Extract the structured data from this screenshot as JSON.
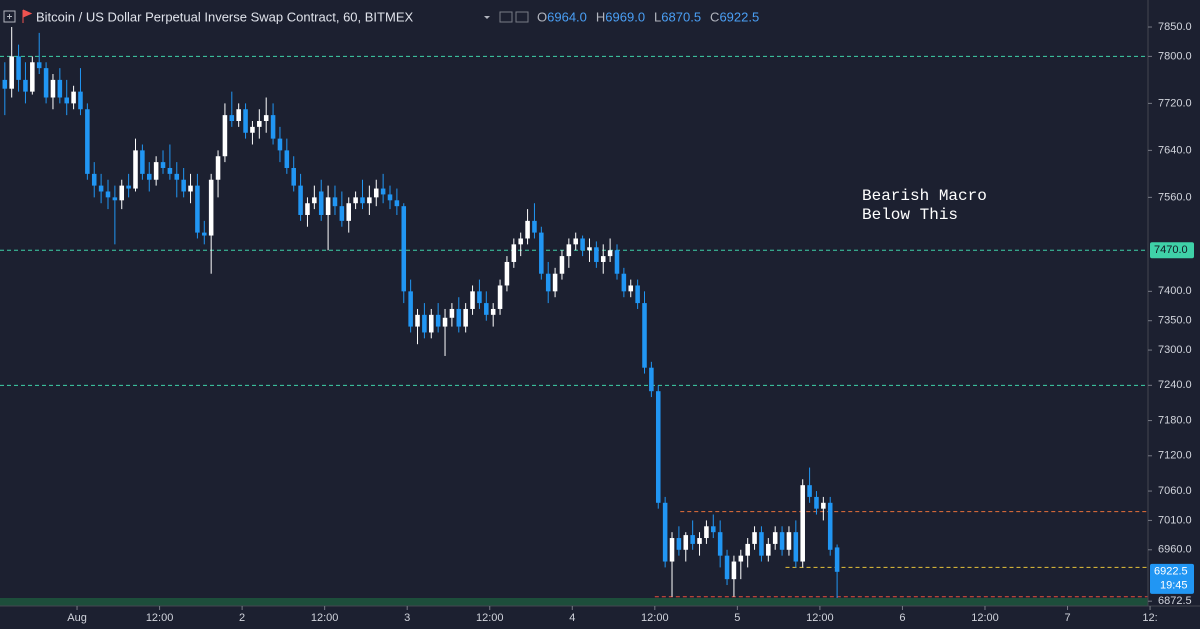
{
  "chart_data": {
    "type": "candlestick",
    "title": "Bitcoin / US Dollar Perpetual Inverse Swap Contract, 60, BITMEX",
    "legend": [
      {
        "key": "O",
        "value": {
          "value": 6964,
          "label": "6964.0"
        }
      },
      {
        "key": "H",
        "value": {
          "value": 6969,
          "label": "6969.0"
        }
      },
      {
        "key": "L",
        "value": {
          "value": 6870.5,
          "label": "6870.5"
        }
      },
      {
        "key": "C",
        "value": {
          "value": 6922.5,
          "label": "6922.5"
        }
      }
    ],
    "up_color": "#ffffff",
    "down_color": "#2196f3",
    "x": [
      -11,
      -10,
      -9,
      -8,
      -7,
      -6,
      -5,
      -4,
      -3,
      -2,
      -1,
      0,
      1,
      2,
      3,
      4,
      5,
      6,
      7,
      8,
      9,
      10,
      11,
      12,
      13,
      14,
      15,
      16,
      17,
      18,
      19,
      20,
      21,
      22,
      23,
      24,
      25,
      26,
      27,
      28,
      29,
      30,
      31,
      32,
      33,
      34,
      35,
      36,
      37,
      38,
      39,
      40,
      41,
      42,
      43,
      44,
      45,
      46,
      47,
      48,
      49,
      50,
      51,
      52,
      53,
      54,
      55,
      56,
      57,
      58,
      59,
      60,
      61,
      62,
      63,
      64,
      65,
      66,
      67,
      68,
      69,
      70,
      71,
      72,
      73,
      74,
      75,
      76,
      77,
      78,
      79,
      80,
      81,
      82,
      83,
      84,
      85,
      86,
      87,
      88,
      89,
      90,
      91,
      92,
      93,
      94,
      95,
      96,
      97,
      98,
      99,
      100,
      101,
      102,
      103,
      104,
      105,
      106,
      107,
      108,
      109,
      110
    ],
    "ohlc": [
      [
        7760,
        7790,
        7700,
        7745
      ],
      [
        7745,
        7850,
        7730,
        7800
      ],
      [
        7800,
        7820,
        7740,
        7760
      ],
      [
        7760,
        7790,
        7720,
        7740
      ],
      [
        7740,
        7800,
        7735,
        7790
      ],
      [
        7790,
        7840,
        7770,
        7780
      ],
      [
        7780,
        7790,
        7720,
        7730
      ],
      [
        7730,
        7770,
        7710,
        7760
      ],
      [
        7760,
        7780,
        7720,
        7730
      ],
      [
        7730,
        7760,
        7700,
        7720
      ],
      [
        7720,
        7750,
        7710,
        7740
      ],
      [
        7740,
        7780,
        7700,
        7710
      ],
      [
        7710,
        7720,
        7590,
        7600
      ],
      [
        7600,
        7620,
        7560,
        7580
      ],
      [
        7580,
        7600,
        7550,
        7570
      ],
      [
        7570,
        7590,
        7540,
        7560
      ],
      [
        7560,
        7580,
        7480,
        7555
      ],
      [
        7555,
        7590,
        7540,
        7580
      ],
      [
        7580,
        7600,
        7560,
        7575
      ],
      [
        7575,
        7660,
        7570,
        7640
      ],
      [
        7640,
        7650,
        7590,
        7600
      ],
      [
        7600,
        7620,
        7570,
        7590
      ],
      [
        7590,
        7630,
        7580,
        7620
      ],
      [
        7620,
        7640,
        7600,
        7610
      ],
      [
        7610,
        7650,
        7590,
        7600
      ],
      [
        7600,
        7620,
        7560,
        7590
      ],
      [
        7590,
        7610,
        7560,
        7570
      ],
      [
        7570,
        7600,
        7550,
        7580
      ],
      [
        7580,
        7600,
        7490,
        7500
      ],
      [
        7500,
        7520,
        7480,
        7495
      ],
      [
        7495,
        7600,
        7430,
        7590
      ],
      [
        7590,
        7640,
        7560,
        7630
      ],
      [
        7630,
        7720,
        7620,
        7700
      ],
      [
        7700,
        7740,
        7680,
        7690
      ],
      [
        7690,
        7720,
        7680,
        7710
      ],
      [
        7710,
        7720,
        7660,
        7670
      ],
      [
        7670,
        7690,
        7650,
        7680
      ],
      [
        7680,
        7710,
        7660,
        7690
      ],
      [
        7690,
        7730,
        7670,
        7700
      ],
      [
        7700,
        7720,
        7650,
        7660
      ],
      [
        7660,
        7680,
        7620,
        7640
      ],
      [
        7640,
        7660,
        7600,
        7610
      ],
      [
        7610,
        7630,
        7570,
        7580
      ],
      [
        7580,
        7600,
        7520,
        7530
      ],
      [
        7530,
        7560,
        7510,
        7550
      ],
      [
        7550,
        7580,
        7540,
        7560
      ],
      [
        7570,
        7590,
        7520,
        7530
      ],
      [
        7530,
        7580,
        7470,
        7560
      ],
      [
        7560,
        7580,
        7530,
        7545
      ],
      [
        7545,
        7570,
        7510,
        7520
      ],
      [
        7520,
        7560,
        7500,
        7550
      ],
      [
        7550,
        7570,
        7540,
        7560
      ],
      [
        7560,
        7590,
        7540,
        7550
      ],
      [
        7550,
        7580,
        7530,
        7560
      ],
      [
        7560,
        7590,
        7545,
        7575
      ],
      [
        7575,
        7600,
        7550,
        7565
      ],
      [
        7565,
        7580,
        7540,
        7555
      ],
      [
        7555,
        7575,
        7530,
        7545
      ],
      [
        7545,
        7550,
        7380,
        7400
      ],
      [
        7400,
        7420,
        7330,
        7340
      ],
      [
        7340,
        7370,
        7310,
        7360
      ],
      [
        7360,
        7380,
        7320,
        7330
      ],
      [
        7330,
        7370,
        7320,
        7360
      ],
      [
        7360,
        7380,
        7330,
        7340
      ],
      [
        7340,
        7370,
        7290,
        7355
      ],
      [
        7355,
        7380,
        7340,
        7370
      ],
      [
        7370,
        7390,
        7330,
        7340
      ],
      [
        7340,
        7380,
        7330,
        7370
      ],
      [
        7370,
        7410,
        7360,
        7400
      ],
      [
        7400,
        7420,
        7370,
        7380
      ],
      [
        7380,
        7400,
        7350,
        7360
      ],
      [
        7360,
        7380,
        7340,
        7370
      ],
      [
        7370,
        7420,
        7360,
        7410
      ],
      [
        7410,
        7460,
        7400,
        7450
      ],
      [
        7450,
        7490,
        7440,
        7480
      ],
      [
        7480,
        7500,
        7460,
        7490
      ],
      [
        7490,
        7540,
        7480,
        7520
      ],
      [
        7520,
        7550,
        7490,
        7500
      ],
      [
        7500,
        7510,
        7420,
        7430
      ],
      [
        7430,
        7450,
        7380,
        7400
      ],
      [
        7400,
        7440,
        7390,
        7430
      ],
      [
        7430,
        7470,
        7420,
        7460
      ],
      [
        7460,
        7490,
        7440,
        7480
      ],
      [
        7480,
        7500,
        7470,
        7490
      ],
      [
        7490,
        7495,
        7460,
        7470
      ],
      [
        7470,
        7490,
        7450,
        7475
      ],
      [
        7475,
        7485,
        7440,
        7450
      ],
      [
        7450,
        7480,
        7430,
        7460
      ],
      [
        7460,
        7490,
        7450,
        7470
      ],
      [
        7470,
        7480,
        7420,
        7430
      ],
      [
        7430,
        7440,
        7390,
        7400
      ],
      [
        7400,
        7420,
        7390,
        7410
      ],
      [
        7410,
        7420,
        7370,
        7380
      ],
      [
        7380,
        7400,
        7260,
        7270
      ],
      [
        7270,
        7280,
        7220,
        7230
      ],
      [
        7230,
        7240,
        7030,
        7040
      ],
      [
        7040,
        7050,
        6930,
        6940
      ],
      [
        6940,
        6990,
        6880,
        6980
      ],
      [
        6980,
        7000,
        6950,
        6960
      ],
      [
        6960,
        6990,
        6940,
        6985
      ],
      [
        6985,
        7010,
        6960,
        6970
      ],
      [
        6970,
        6990,
        6950,
        6980
      ],
      [
        6980,
        7010,
        6970,
        7000
      ],
      [
        7000,
        7020,
        6980,
        6990
      ],
      [
        6990,
        7010,
        6930,
        6950
      ],
      [
        6950,
        6960,
        6900,
        6910
      ],
      [
        6910,
        6950,
        6880,
        6940
      ],
      [
        6940,
        6960,
        6910,
        6950
      ],
      [
        6950,
        6980,
        6930,
        6970
      ],
      [
        6970,
        7000,
        6960,
        6990
      ],
      [
        6990,
        7000,
        6940,
        6950
      ],
      [
        6950,
        6980,
        6940,
        6970
      ],
      [
        6970,
        7000,
        6960,
        6990
      ],
      [
        6990,
        7000,
        6950,
        6960
      ],
      [
        6960,
        7000,
        6950,
        6990
      ],
      [
        6990,
        7010,
        6930,
        6940
      ],
      [
        6940,
        7080,
        6930,
        7070
      ],
      [
        7070,
        7100,
        7040,
        7050
      ],
      [
        7050,
        7060,
        7020,
        7030
      ],
      [
        7030,
        7050,
        7010,
        7040
      ],
      [
        7040,
        7050,
        6950,
        6960
      ],
      [
        6964,
        6969,
        6870.5,
        6922.5
      ]
    ],
    "xlim": [
      -11.2,
      155.7
    ],
    "xticks": [
      {
        "value": 0,
        "label": "Aug"
      },
      {
        "value": 12,
        "label": "12:00"
      },
      {
        "value": 24,
        "label": "2"
      },
      {
        "value": 36,
        "label": "12:00"
      },
      {
        "value": 48,
        "label": "3"
      },
      {
        "value": 60,
        "label": "12:00"
      },
      {
        "value": 72,
        "label": "4"
      },
      {
        "value": 84,
        "label": "12:00"
      },
      {
        "value": 96,
        "label": "5"
      },
      {
        "value": 108,
        "label": "12:00"
      },
      {
        "value": 120,
        "label": "6"
      },
      {
        "value": 132,
        "label": "12:00"
      },
      {
        "value": 144,
        "label": "7"
      },
      {
        "value": 156,
        "label": "12:"
      }
    ],
    "ylim": [
      6866,
      7896
    ],
    "yticks": [
      {
        "value": 7850,
        "label": "7850.0"
      },
      {
        "value": 7800,
        "label": "7800.0"
      },
      {
        "value": 7720,
        "label": "7720.0"
      },
      {
        "value": 7640,
        "label": "7640.0"
      },
      {
        "value": 7560,
        "label": "7560.0"
      },
      {
        "value": 7400,
        "label": "7400.0"
      },
      {
        "value": 7350,
        "label": "7350.0"
      },
      {
        "value": 7300,
        "label": "7300.0"
      },
      {
        "value": 7240,
        "label": "7240.0"
      },
      {
        "value": 7180,
        "label": "7180.0"
      },
      {
        "value": 7120,
        "label": "7120.0"
      },
      {
        "value": 7060,
        "label": "7060.0"
      },
      {
        "value": 7010,
        "label": "7010.0"
      },
      {
        "value": 6960,
        "label": "6960.0"
      },
      {
        "value": 6872.5,
        "label": "6872.5"
      }
    ],
    "hlines": [
      {
        "value": 7800,
        "color": "#3fd1a8",
        "x_from": -11.2
      },
      {
        "value": {
          "value": 7470,
          "label": "7470.0"
        },
        "color": "#3fd1a8",
        "x_from": -11.2
      },
      {
        "value": 7240,
        "color": "#3fd1a8",
        "x_from": -11.2
      },
      {
        "value": 7025,
        "color": "#e8703a",
        "x_from": 87.7
      },
      {
        "value": 6930,
        "color": "#e8c33a",
        "x_from": 103
      },
      {
        "value": 6880,
        "color": "#e8503a",
        "x_from": 84
      }
    ],
    "current_price": 6922.5,
    "countdown": "19:45",
    "annotation": [
      "Bearish Macro",
      "Below This"
    ]
  }
}
